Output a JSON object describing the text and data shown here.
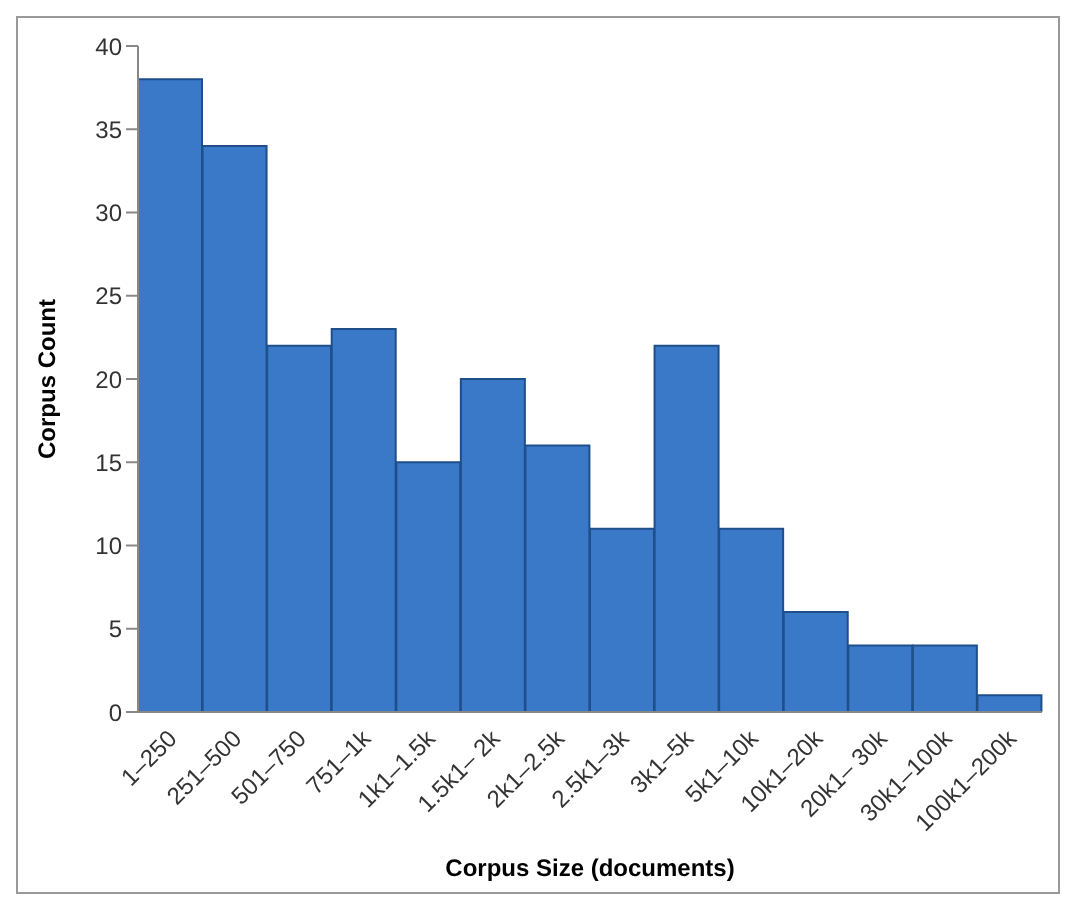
{
  "chart_data": {
    "type": "bar",
    "xlabel": "Corpus Size (documents)",
    "ylabel": "Corpus Count",
    "categories": [
      "1–250",
      "251–500",
      "501–750",
      "751–1k",
      "1k1–1.5k",
      "1.5k1– 2k",
      "2k1–2.5k",
      "2.5k1–3k",
      "3k1–5k",
      "5k1–10k",
      "10k1–20k",
      "20k1– 30k",
      "30k1–100k",
      "100k1–200k"
    ],
    "values": [
      38,
      34,
      22,
      23,
      15,
      20,
      16,
      11,
      22,
      11,
      6,
      4,
      4,
      1
    ],
    "color": "#3a78c8",
    "ylim": [
      0,
      40
    ],
    "yticks": [
      0,
      5,
      10,
      15,
      20,
      25,
      30,
      35,
      40
    ],
    "grid": false,
    "legend": false
  }
}
